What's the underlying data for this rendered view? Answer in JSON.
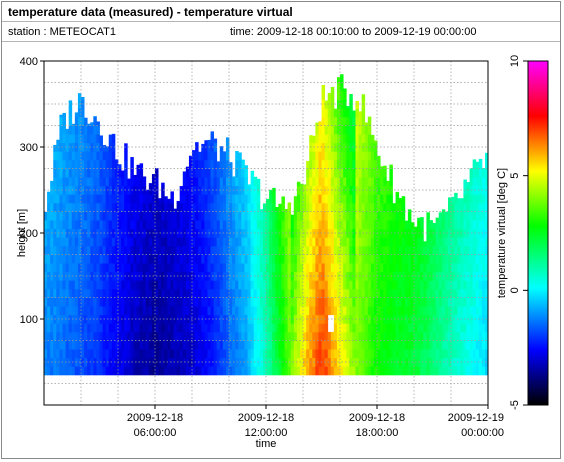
{
  "header": {
    "title": "temperature data (measured) - temperature virtual",
    "station_label": "station : METEOCAT1",
    "time_label": "time: 2009-12-18 00:10:00 to 2009-12-19 00:00:00"
  },
  "chart_data": {
    "type": "heatmap",
    "xlabel": "time",
    "ylabel": "height [m]",
    "colorbar_label": "temperature virtual [deg C]",
    "xlim_hours": [
      0,
      24
    ],
    "ylim": [
      0,
      400
    ],
    "clim": [
      -5,
      10
    ],
    "x_ticks": [
      {
        "hour": 6,
        "line1": "2009-12-18",
        "line2": "06:00:00"
      },
      {
        "hour": 12,
        "line1": "2009-12-18",
        "line2": "12:00:00"
      },
      {
        "hour": 18,
        "line1": "2009-12-18",
        "line2": "18:00:00"
      },
      {
        "hour": 24,
        "line1": "2009-12-19",
        "line2": "00:00:00"
      }
    ],
    "y_ticks": [
      "100",
      "200",
      "300",
      "400"
    ],
    "colorbar_ticks": [
      "-5",
      "0",
      "5",
      "10"
    ],
    "bottom_height": 35,
    "column_width_h": 0.1667,
    "top_heights": [
      [
        0,
        225
      ],
      [
        1,
        330
      ],
      [
        2,
        355
      ],
      [
        3,
        330
      ],
      [
        4,
        295
      ],
      [
        5,
        270
      ],
      [
        6,
        260
      ],
      [
        7,
        240
      ],
      [
        8,
        300
      ],
      [
        9,
        305
      ],
      [
        10,
        290
      ],
      [
        11,
        265
      ],
      [
        12,
        240
      ],
      [
        13,
        230
      ],
      [
        14,
        255
      ],
      [
        15,
        355
      ],
      [
        16,
        365
      ],
      [
        17,
        360
      ],
      [
        18,
        300
      ],
      [
        19,
        250
      ],
      [
        20,
        215
      ],
      [
        21,
        205
      ],
      [
        22,
        225
      ],
      [
        23,
        260
      ],
      [
        24,
        290
      ],
      [
        25,
        300
      ],
      [
        26,
        285
      ],
      [
        27,
        260
      ],
      [
        28,
        240
      ]
    ],
    "temp_profile": [
      [
        0,
        -1.2
      ],
      [
        1,
        -1.5
      ],
      [
        2,
        -1.8
      ],
      [
        3,
        -2.2
      ],
      [
        4,
        -2.8
      ],
      [
        5,
        -3.3
      ],
      [
        6,
        -3.6
      ],
      [
        7,
        -3.4
      ],
      [
        8,
        -3.1
      ],
      [
        9,
        -2.5
      ],
      [
        10,
        -1.6
      ],
      [
        11,
        -0.8
      ],
      [
        12,
        0.8
      ],
      [
        13,
        3.0
      ],
      [
        14,
        5.5
      ],
      [
        15,
        7.2
      ],
      [
        16,
        5.5
      ],
      [
        17,
        3.8
      ],
      [
        18,
        2.8
      ],
      [
        19,
        2.4
      ],
      [
        20,
        2.2
      ],
      [
        21,
        1.6
      ],
      [
        22,
        0.8
      ],
      [
        23,
        0.2
      ],
      [
        24,
        -0.3
      ]
    ],
    "missing_patch": {
      "hour_from": 15.4,
      "hour_to": 15.6,
      "height_from": 80,
      "height_to": 105
    }
  },
  "colors": {
    "colormap": [
      "#000000",
      "#0000ff",
      "#00ffff",
      "#00ff00",
      "#ffff00",
      "#ff0000",
      "#ff00ff"
    ],
    "grid": "#9a9a9a"
  }
}
